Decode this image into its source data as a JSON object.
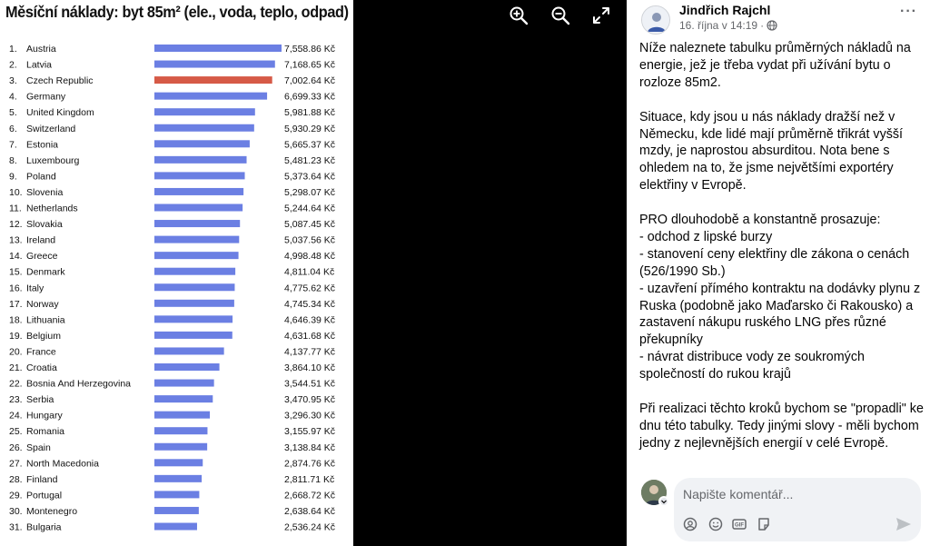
{
  "viewer": {
    "controls": [
      {
        "name": "zoom-in-icon"
      },
      {
        "name": "zoom-out-icon"
      },
      {
        "name": "expand-icon"
      }
    ]
  },
  "chart_data": {
    "type": "bar",
    "orientation": "horizontal",
    "title": "Měsíční náklady: byt 85m² (ele., voda, teplo, odpad)",
    "value_suffix": " Kč",
    "highlight_color": "#d65a47",
    "bar_color": "#6b7fe3",
    "highlight_index": 2,
    "rows": [
      {
        "rank": "1.",
        "country": "Austria",
        "value": 7558.86,
        "label": "7,558.86 Kč"
      },
      {
        "rank": "2.",
        "country": "Latvia",
        "value": 7168.65,
        "label": "7,168.65 Kč"
      },
      {
        "rank": "3.",
        "country": "Czech Republic",
        "value": 7002.64,
        "label": "7,002.64 Kč"
      },
      {
        "rank": "4.",
        "country": "Germany",
        "value": 6699.33,
        "label": "6,699.33 Kč"
      },
      {
        "rank": "5.",
        "country": "United Kingdom",
        "value": 5981.88,
        "label": "5,981.88 Kč"
      },
      {
        "rank": "6.",
        "country": "Switzerland",
        "value": 5930.29,
        "label": "5,930.29 Kč"
      },
      {
        "rank": "7.",
        "country": "Estonia",
        "value": 5665.37,
        "label": "5,665.37 Kč"
      },
      {
        "rank": "8.",
        "country": "Luxembourg",
        "value": 5481.23,
        "label": "5,481.23 Kč"
      },
      {
        "rank": "9.",
        "country": "Poland",
        "value": 5373.64,
        "label": "5,373.64 Kč"
      },
      {
        "rank": "10.",
        "country": "Slovenia",
        "value": 5298.07,
        "label": "5,298.07 Kč"
      },
      {
        "rank": "11.",
        "country": "Netherlands",
        "value": 5244.64,
        "label": "5,244.64 Kč"
      },
      {
        "rank": "12.",
        "country": "Slovakia",
        "value": 5087.45,
        "label": "5,087.45 Kč"
      },
      {
        "rank": "13.",
        "country": "Ireland",
        "value": 5037.56,
        "label": "5,037.56 Kč"
      },
      {
        "rank": "14.",
        "country": "Greece",
        "value": 4998.48,
        "label": "4,998.48 Kč"
      },
      {
        "rank": "15.",
        "country": "Denmark",
        "value": 4811.04,
        "label": "4,811.04 Kč"
      },
      {
        "rank": "16.",
        "country": "Italy",
        "value": 4775.62,
        "label": "4,775.62 Kč"
      },
      {
        "rank": "17.",
        "country": "Norway",
        "value": 4745.34,
        "label": "4,745.34 Kč"
      },
      {
        "rank": "18.",
        "country": "Lithuania",
        "value": 4646.39,
        "label": "4,646.39 Kč"
      },
      {
        "rank": "19.",
        "country": "Belgium",
        "value": 4631.68,
        "label": "4,631.68 Kč"
      },
      {
        "rank": "20.",
        "country": "France",
        "value": 4137.77,
        "label": "4,137.77 Kč"
      },
      {
        "rank": "21.",
        "country": "Croatia",
        "value": 3864.1,
        "label": "3,864.10 Kč"
      },
      {
        "rank": "22.",
        "country": "Bosnia And Herzegovina",
        "value": 3544.51,
        "label": "3,544.51 Kč"
      },
      {
        "rank": "23.",
        "country": "Serbia",
        "value": 3470.95,
        "label": "3,470.95 Kč"
      },
      {
        "rank": "24.",
        "country": "Hungary",
        "value": 3296.3,
        "label": "3,296.30 Kč"
      },
      {
        "rank": "25.",
        "country": "Romania",
        "value": 3155.97,
        "label": "3,155.97 Kč"
      },
      {
        "rank": "26.",
        "country": "Spain",
        "value": 3138.84,
        "label": "3,138.84 Kč"
      },
      {
        "rank": "27.",
        "country": "North Macedonia",
        "value": 2874.76,
        "label": "2,874.76 Kč"
      },
      {
        "rank": "28.",
        "country": "Finland",
        "value": 2811.71,
        "label": "2,811.71 Kč"
      },
      {
        "rank": "29.",
        "country": "Portugal",
        "value": 2668.72,
        "label": "2,668.72 Kč"
      },
      {
        "rank": "30.",
        "country": "Montenegro",
        "value": 2638.64,
        "label": "2,638.64 Kč"
      },
      {
        "rank": "31.",
        "country": "Bulgaria",
        "value": 2536.24,
        "label": "2,536.24 Kč"
      }
    ]
  },
  "post": {
    "author": "Jindřich Rajchl",
    "date": "16. října v 14:19",
    "dot": "·",
    "audience_icon": "globe-icon",
    "more": "···",
    "paragraphs": [
      [
        "Níže naleznete tabulku průměrných nákladů na energie, jež je třeba vydat při užívání bytu o rozloze 85m2."
      ],
      [
        "Situace, kdy jsou u nás náklady dražší než v Německu, kde lidé mají průměrně třikrát vyšší mzdy, je naprostou absurditou. Nota bene s ohledem na to, že jsme největšími exportéry elektřiny v Evropě."
      ],
      [
        "PRO dlouhodobě a konstantně prosazuje:",
        "- odchod z lipské burzy",
        "- stanovení ceny elektřiny dle zákona o cenách (526/1990 Sb.)",
        "- uzavření přímého kontraktu na dodávky plynu z Ruska (podobně jako Maďarsko či Rakousko) a zastavení nákupu ruského LNG přes různé překupníky",
        "- návrat distribuce vody ze soukromých společností do rukou krajů"
      ],
      [
        "Při realizaci těchto kroků bychom se \"propadli\" ke dnu této tabulky. Tedy jinými slovy - měli bychom jedny z nejlevnějších energií v celé Evropě."
      ]
    ]
  },
  "comment": {
    "placeholder": "Napište komentář...",
    "icons": [
      "avatar-sticker-icon",
      "emoji-icon",
      "gif-icon",
      "sticker-icon"
    ],
    "send_icon": "send-icon"
  }
}
